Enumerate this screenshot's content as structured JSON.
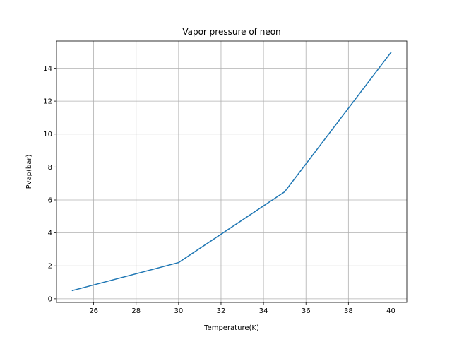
{
  "chart_data": {
    "type": "line",
    "title": "Vapor pressure of neon",
    "xlabel": "Temperature(K)",
    "ylabel": "Pvap(bar)",
    "xlim": [
      24.25,
      40.75
    ],
    "ylim": [
      -0.22,
      15.65
    ],
    "xticks": [
      26,
      28,
      30,
      32,
      34,
      36,
      38,
      40
    ],
    "xtick_labels": [
      "26",
      "28",
      "30",
      "32",
      "34",
      "36",
      "38",
      "40"
    ],
    "yticks": [
      0,
      2,
      4,
      6,
      8,
      10,
      12,
      14
    ],
    "ytick_labels": [
      "0",
      "2",
      "4",
      "6",
      "8",
      "10",
      "12",
      "14"
    ],
    "grid": true,
    "legend": false,
    "line_color": "#1f77b4",
    "series": [
      {
        "x": [
          25,
          30,
          35,
          40
        ],
        "values": [
          0.5,
          2.2,
          6.5,
          14.95
        ]
      }
    ]
  }
}
